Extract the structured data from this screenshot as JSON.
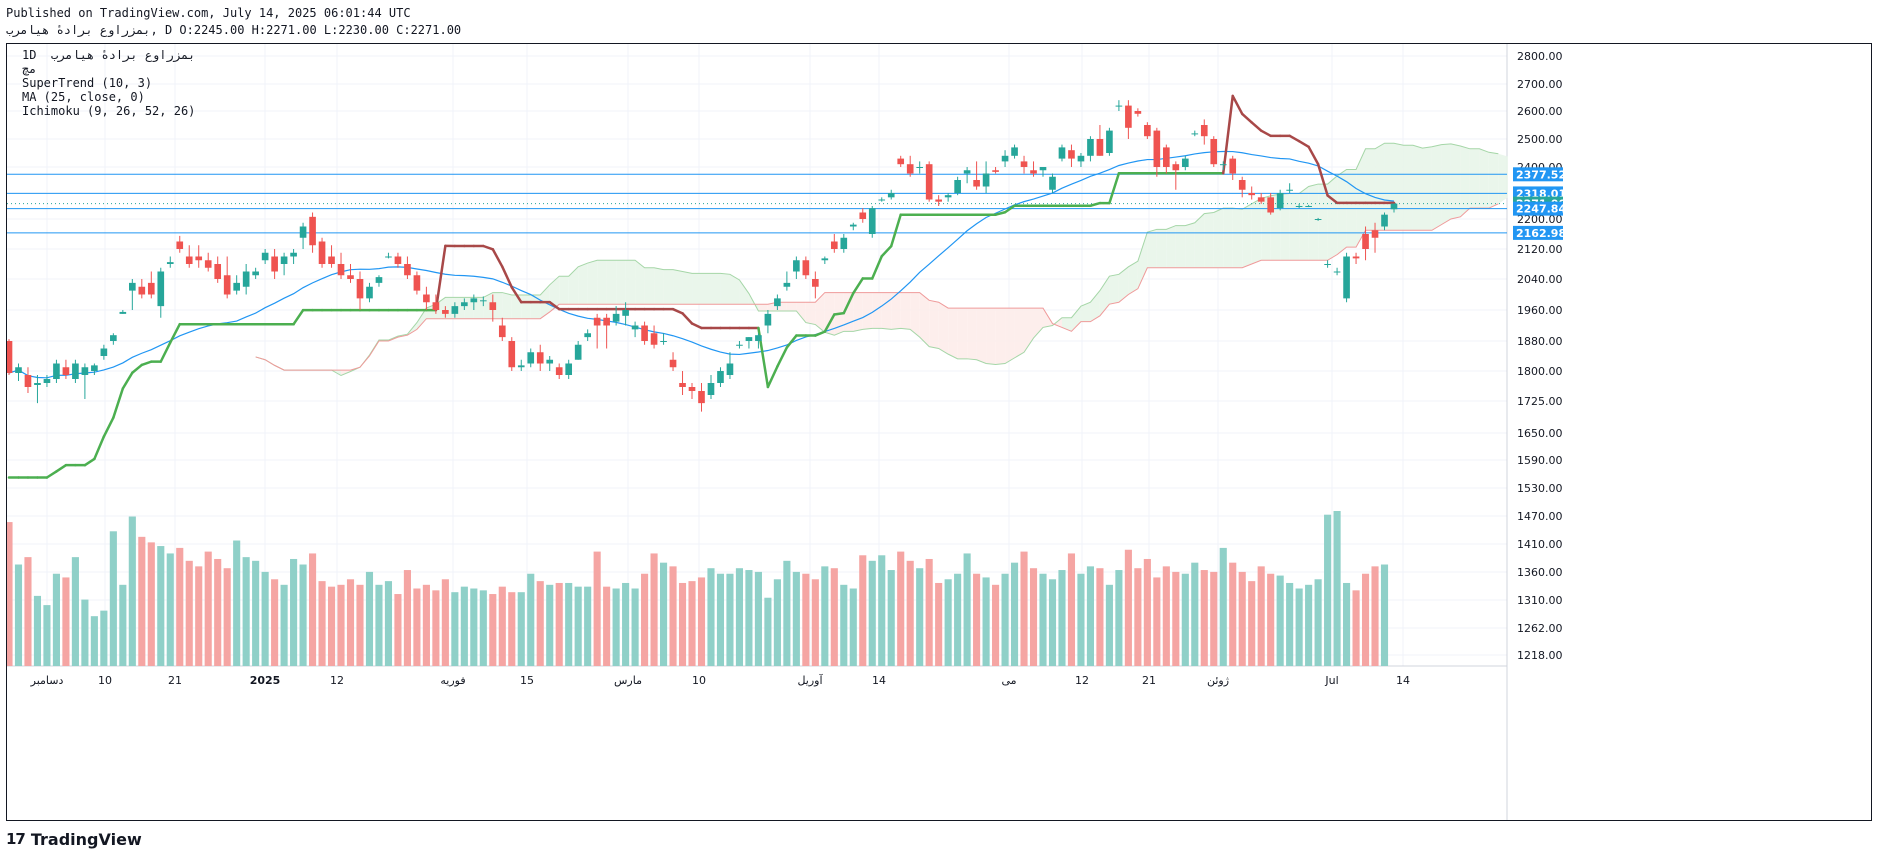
{
  "header": {
    "published": "Published on TradingView.com, July 14, 2025 06:01:44 UTC",
    "symbol_line": "بمزراوع برادهٔ هیامرب, D O:2245.00 H:2271.00 L:2230.00 C:2271.00"
  },
  "legend": {
    "line1": "1D  بمزراوع برادهٔ هیامرب",
    "line2": "مچ",
    "line3": "SuperTrend (10, 3)",
    "line4": "MA (25, close, 0)",
    "line5": "Ichimoku (9, 26, 52, 26)"
  },
  "footer": {
    "logo_mark": "17",
    "logo_word": "TradingView"
  },
  "colors": {
    "up": "#26a69a",
    "down": "#ef5350",
    "up_vol": "#8fd0c8",
    "down_vol": "#f5a5a3",
    "supertrend_up": "#4caf50",
    "supertrend_down": "#a84848",
    "ma": "#2196f3",
    "kumo_bull": "#e8f5e9",
    "kumo_bear": "#fdecea",
    "hline": "#2196f3"
  },
  "chart_data": {
    "type": "candlestick",
    "interval": "1D",
    "y_axis": {
      "side": "right",
      "ticks": [
        2800,
        2700,
        2600,
        2500,
        2400,
        2320,
        2200,
        2120,
        2040,
        1960,
        1880,
        1800,
        1725,
        1650,
        1590,
        1530,
        1470,
        1410,
        1360,
        1310,
        1262,
        1218
      ],
      "tick_labels": [
        "2800.00",
        "2700.00",
        "2600.00",
        "2500.00",
        "2400.00",
        "2320.00",
        "2200.00",
        "2120.00",
        "2040.00",
        "1960.00",
        "1880.00",
        "1800.00",
        "1725.00",
        "1650.00",
        "1590.00",
        "1530.00",
        "1470.00",
        "1410.00",
        "1360.00",
        "1310.00",
        "1262.00",
        "1218.00"
      ]
    },
    "x_axis": {
      "labels": [
        "دسامبر",
        "10",
        "21",
        "2025",
        "12",
        "فوریه",
        "15",
        "مارس",
        "10",
        "آوریل",
        "14",
        "می",
        "12",
        "21",
        "ژوئن",
        "Jul",
        "14"
      ]
    },
    "price_labels": [
      {
        "value": 2377.52,
        "text": "2377.52",
        "color": "#2196f3"
      },
      {
        "value": 2318.01,
        "text": "2318.01",
        "color": "#2196f3"
      },
      {
        "value": 2271.0,
        "text": "2271.00",
        "color": "#26a69a"
      },
      {
        "value": 2247.84,
        "text": "2247.84",
        "color": "#2196f3"
      },
      {
        "value": 2162.98,
        "text": "2162.98",
        "color": "#2196f3"
      }
    ],
    "horizontal_lines": [
      2377.52,
      2318.01,
      2247.84,
      2162.98
    ],
    "candles": [
      {
        "o": 1880,
        "h": 1885,
        "l": 1790,
        "c": 1795
      },
      {
        "o": 1795,
        "h": 1820,
        "l": 1775,
        "c": 1810
      },
      {
        "o": 1790,
        "h": 1810,
        "l": 1745,
        "c": 1760
      },
      {
        "o": 1765,
        "h": 1790,
        "l": 1720,
        "c": 1770
      },
      {
        "o": 1770,
        "h": 1790,
        "l": 1760,
        "c": 1780
      },
      {
        "o": 1780,
        "h": 1830,
        "l": 1770,
        "c": 1820
      },
      {
        "o": 1810,
        "h": 1830,
        "l": 1780,
        "c": 1790
      },
      {
        "o": 1780,
        "h": 1830,
        "l": 1770,
        "c": 1820
      },
      {
        "o": 1790,
        "h": 1820,
        "l": 1730,
        "c": 1810
      },
      {
        "o": 1800,
        "h": 1820,
        "l": 1790,
        "c": 1815
      },
      {
        "o": 1840,
        "h": 1870,
        "l": 1830,
        "c": 1860
      },
      {
        "o": 1880,
        "h": 1900,
        "l": 1870,
        "c": 1895
      },
      {
        "o": 1950,
        "h": 1960,
        "l": 1950,
        "c": 1955
      },
      {
        "o": 2010,
        "h": 2040,
        "l": 1960,
        "c": 2030
      },
      {
        "o": 2020,
        "h": 2040,
        "l": 1990,
        "c": 2000
      },
      {
        "o": 2030,
        "h": 2060,
        "l": 1990,
        "c": 2000
      },
      {
        "o": 1970,
        "h": 2070,
        "l": 1940,
        "c": 2060
      },
      {
        "o": 2080,
        "h": 2100,
        "l": 2070,
        "c": 2085
      },
      {
        "o": 2140,
        "h": 2155,
        "l": 2110,
        "c": 2120
      },
      {
        "o": 2100,
        "h": 2130,
        "l": 2070,
        "c": 2080
      },
      {
        "o": 2100,
        "h": 2130,
        "l": 2070,
        "c": 2090
      },
      {
        "o": 2090,
        "h": 2110,
        "l": 2060,
        "c": 2070
      },
      {
        "o": 2080,
        "h": 2100,
        "l": 2030,
        "c": 2040
      },
      {
        "o": 2050,
        "h": 2100,
        "l": 1990,
        "c": 2000
      },
      {
        "o": 2010,
        "h": 2050,
        "l": 2000,
        "c": 2030
      },
      {
        "o": 2020,
        "h": 2080,
        "l": 2000,
        "c": 2060
      },
      {
        "o": 2050,
        "h": 2070,
        "l": 2040,
        "c": 2060
      },
      {
        "o": 2090,
        "h": 2120,
        "l": 2080,
        "c": 2110
      },
      {
        "o": 2100,
        "h": 2120,
        "l": 2040,
        "c": 2060
      },
      {
        "o": 2080,
        "h": 2110,
        "l": 2050,
        "c": 2100
      },
      {
        "o": 2100,
        "h": 2120,
        "l": 2080,
        "c": 2110
      },
      {
        "o": 2150,
        "h": 2190,
        "l": 2120,
        "c": 2180
      },
      {
        "o": 2210,
        "h": 2230,
        "l": 2110,
        "c": 2130
      },
      {
        "o": 2140,
        "h": 2150,
        "l": 2070,
        "c": 2080
      },
      {
        "o": 2100,
        "h": 2130,
        "l": 2070,
        "c": 2080
      },
      {
        "o": 2080,
        "h": 2110,
        "l": 2040,
        "c": 2050
      },
      {
        "o": 2050,
        "h": 2080,
        "l": 2030,
        "c": 2040
      },
      {
        "o": 2040,
        "h": 2060,
        "l": 1960,
        "c": 1990
      },
      {
        "o": 1990,
        "h": 2030,
        "l": 1980,
        "c": 2020
      },
      {
        "o": 2030,
        "h": 2050,
        "l": 2020,
        "c": 2045
      },
      {
        "o": 2100,
        "h": 2110,
        "l": 2095,
        "c": 2100
      },
      {
        "o": 2100,
        "h": 2110,
        "l": 2070,
        "c": 2080
      },
      {
        "o": 2080,
        "h": 2100,
        "l": 2040,
        "c": 2050
      },
      {
        "o": 2050,
        "h": 2060,
        "l": 2000,
        "c": 2010
      },
      {
        "o": 2000,
        "h": 2020,
        "l": 1960,
        "c": 1980
      },
      {
        "o": 1980,
        "h": 2000,
        "l": 1950,
        "c": 1960
      },
      {
        "o": 1960,
        "h": 1970,
        "l": 1940,
        "c": 1950
      },
      {
        "o": 1950,
        "h": 1980,
        "l": 1940,
        "c": 1970
      },
      {
        "o": 1970,
        "h": 1990,
        "l": 1960,
        "c": 1980
      },
      {
        "o": 1980,
        "h": 2000,
        "l": 1960,
        "c": 1990
      },
      {
        "o": 1985,
        "h": 1995,
        "l": 1970,
        "c": 1985
      },
      {
        "o": 1980,
        "h": 2000,
        "l": 1930,
        "c": 1960
      },
      {
        "o": 1920,
        "h": 1940,
        "l": 1880,
        "c": 1890
      },
      {
        "o": 1880,
        "h": 1890,
        "l": 1800,
        "c": 1810
      },
      {
        "o": 1810,
        "h": 1830,
        "l": 1800,
        "c": 1815
      },
      {
        "o": 1820,
        "h": 1860,
        "l": 1810,
        "c": 1850
      },
      {
        "o": 1850,
        "h": 1870,
        "l": 1800,
        "c": 1820
      },
      {
        "o": 1820,
        "h": 1840,
        "l": 1800,
        "c": 1830
      },
      {
        "o": 1810,
        "h": 1820,
        "l": 1780,
        "c": 1790
      },
      {
        "o": 1790,
        "h": 1830,
        "l": 1780,
        "c": 1820
      },
      {
        "o": 1830,
        "h": 1880,
        "l": 1830,
        "c": 1870
      },
      {
        "o": 1890,
        "h": 1910,
        "l": 1880,
        "c": 1900
      },
      {
        "o": 1940,
        "h": 1950,
        "l": 1860,
        "c": 1920
      },
      {
        "o": 1940,
        "h": 1950,
        "l": 1860,
        "c": 1920
      },
      {
        "o": 1930,
        "h": 1970,
        "l": 1920,
        "c": 1950
      },
      {
        "o": 1945,
        "h": 1980,
        "l": 1920,
        "c": 1960
      },
      {
        "o": 1910,
        "h": 1930,
        "l": 1890,
        "c": 1920
      },
      {
        "o": 1920,
        "h": 1930,
        "l": 1870,
        "c": 1880
      },
      {
        "o": 1900,
        "h": 1920,
        "l": 1860,
        "c": 1870
      },
      {
        "o": 1880,
        "h": 1900,
        "l": 1870,
        "c": 1880
      },
      {
        "o": 1830,
        "h": 1850,
        "l": 1800,
        "c": 1810
      },
      {
        "o": 1770,
        "h": 1800,
        "l": 1740,
        "c": 1760
      },
      {
        "o": 1760,
        "h": 1770,
        "l": 1730,
        "c": 1750
      },
      {
        "o": 1750,
        "h": 1770,
        "l": 1700,
        "c": 1720
      },
      {
        "o": 1740,
        "h": 1790,
        "l": 1730,
        "c": 1770
      },
      {
        "o": 1770,
        "h": 1810,
        "l": 1760,
        "c": 1800
      },
      {
        "o": 1790,
        "h": 1850,
        "l": 1780,
        "c": 1820
      },
      {
        "o": 1870,
        "h": 1880,
        "l": 1860,
        "c": 1870
      },
      {
        "o": 1880,
        "h": 1890,
        "l": 1860,
        "c": 1890
      },
      {
        "o": 1880,
        "h": 1900,
        "l": 1860,
        "c": 1895
      },
      {
        "o": 1920,
        "h": 1960,
        "l": 1900,
        "c": 1950
      },
      {
        "o": 1970,
        "h": 2000,
        "l": 1960,
        "c": 1990
      },
      {
        "o": 2020,
        "h": 2060,
        "l": 2010,
        "c": 2030
      },
      {
        "o": 2060,
        "h": 2100,
        "l": 2040,
        "c": 2090
      },
      {
        "o": 2090,
        "h": 2100,
        "l": 2040,
        "c": 2050
      },
      {
        "o": 2040,
        "h": 2060,
        "l": 1990,
        "c": 2020
      },
      {
        "o": 2090,
        "h": 2100,
        "l": 2080,
        "c": 2095
      },
      {
        "o": 2140,
        "h": 2160,
        "l": 2110,
        "c": 2120
      },
      {
        "o": 2120,
        "h": 2160,
        "l": 2110,
        "c": 2150
      },
      {
        "o": 2180,
        "h": 2190,
        "l": 2170,
        "c": 2185
      },
      {
        "o": 2230,
        "h": 2250,
        "l": 2190,
        "c": 2200
      },
      {
        "o": 2160,
        "h": 2260,
        "l": 2150,
        "c": 2250
      },
      {
        "o": 2290,
        "h": 2300,
        "l": 2280,
        "c": 2290
      },
      {
        "o": 2300,
        "h": 2330,
        "l": 2290,
        "c": 2320
      },
      {
        "o": 2430,
        "h": 2440,
        "l": 2400,
        "c": 2410
      },
      {
        "o": 2410,
        "h": 2440,
        "l": 2370,
        "c": 2380
      },
      {
        "o": 2400,
        "h": 2420,
        "l": 2380,
        "c": 2400
      },
      {
        "o": 2410,
        "h": 2420,
        "l": 2280,
        "c": 2290
      },
      {
        "o": 2290,
        "h": 2310,
        "l": 2260,
        "c": 2280
      },
      {
        "o": 2300,
        "h": 2320,
        "l": 2280,
        "c": 2310
      },
      {
        "o": 2320,
        "h": 2370,
        "l": 2310,
        "c": 2360
      },
      {
        "o": 2380,
        "h": 2400,
        "l": 2350,
        "c": 2390
      },
      {
        "o": 2360,
        "h": 2420,
        "l": 2330,
        "c": 2340
      },
      {
        "o": 2340,
        "h": 2420,
        "l": 2320,
        "c": 2380
      },
      {
        "o": 2390,
        "h": 2400,
        "l": 2380,
        "c": 2385
      },
      {
        "o": 2420,
        "h": 2460,
        "l": 2400,
        "c": 2440
      },
      {
        "o": 2440,
        "h": 2480,
        "l": 2430,
        "c": 2470
      },
      {
        "o": 2420,
        "h": 2440,
        "l": 2380,
        "c": 2400
      },
      {
        "o": 2390,
        "h": 2420,
        "l": 2370,
        "c": 2380
      },
      {
        "o": 2390,
        "h": 2400,
        "l": 2370,
        "c": 2400
      },
      {
        "o": 2330,
        "h": 2380,
        "l": 2320,
        "c": 2370
      },
      {
        "o": 2430,
        "h": 2480,
        "l": 2420,
        "c": 2470
      },
      {
        "o": 2460,
        "h": 2480,
        "l": 2400,
        "c": 2430
      },
      {
        "o": 2420,
        "h": 2450,
        "l": 2400,
        "c": 2440
      },
      {
        "o": 2440,
        "h": 2510,
        "l": 2420,
        "c": 2500
      },
      {
        "o": 2500,
        "h": 2550,
        "l": 2440,
        "c": 2440
      },
      {
        "o": 2450,
        "h": 2540,
        "l": 2440,
        "c": 2530
      },
      {
        "o": 2620,
        "h": 2640,
        "l": 2600,
        "c": 2620
      },
      {
        "o": 2620,
        "h": 2640,
        "l": 2500,
        "c": 2540
      },
      {
        "o": 2600,
        "h": 2610,
        "l": 2580,
        "c": 2590
      },
      {
        "o": 2550,
        "h": 2560,
        "l": 2500,
        "c": 2510
      },
      {
        "o": 2530,
        "h": 2540,
        "l": 2370,
        "c": 2400
      },
      {
        "o": 2470,
        "h": 2480,
        "l": 2380,
        "c": 2400
      },
      {
        "o": 2410,
        "h": 2420,
        "l": 2330,
        "c": 2390
      },
      {
        "o": 2400,
        "h": 2440,
        "l": 2390,
        "c": 2430
      },
      {
        "o": 2520,
        "h": 2530,
        "l": 2510,
        "c": 2520
      },
      {
        "o": 2550,
        "h": 2570,
        "l": 2480,
        "c": 2510
      },
      {
        "o": 2500,
        "h": 2510,
        "l": 2400,
        "c": 2410
      },
      {
        "o": 2410,
        "h": 2420,
        "l": 2390,
        "c": 2410
      },
      {
        "o": 2430,
        "h": 2440,
        "l": 2360,
        "c": 2380
      },
      {
        "o": 2360,
        "h": 2370,
        "l": 2300,
        "c": 2330
      },
      {
        "o": 2320,
        "h": 2340,
        "l": 2290,
        "c": 2310
      },
      {
        "o": 2300,
        "h": 2320,
        "l": 2270,
        "c": 2280
      },
      {
        "o": 2300,
        "h": 2320,
        "l": 2220,
        "c": 2230
      },
      {
        "o": 2250,
        "h": 2330,
        "l": 2240,
        "c": 2320
      },
      {
        "o": 2330,
        "h": 2350,
        "l": 2320,
        "c": 2330
      },
      {
        "o": 2260,
        "h": 2270,
        "l": 2250,
        "c": 2260
      },
      {
        "o": 2260,
        "h": 2265,
        "l": 2255,
        "c": 2260
      },
      {
        "o": 2200,
        "h": 2205,
        "l": 2195,
        "c": 2200
      },
      {
        "o": 2080,
        "h": 2090,
        "l": 2070,
        "c": 2080
      },
      {
        "o": 2060,
        "h": 2070,
        "l": 2050,
        "c": 2060
      },
      {
        "o": 1990,
        "h": 2110,
        "l": 1980,
        "c": 2100
      },
      {
        "o": 2100,
        "h": 2110,
        "l": 2080,
        "c": 2095
      },
      {
        "o": 2160,
        "h": 2180,
        "l": 2090,
        "c": 2120
      },
      {
        "o": 2170,
        "h": 2190,
        "l": 2110,
        "c": 2150
      },
      {
        "o": 2180,
        "h": 2230,
        "l": 2170,
        "c": 2220
      },
      {
        "o": 2245,
        "h": 2271,
        "l": 2230,
        "c": 2271
      }
    ],
    "volume": [
      3900,
      2750,
      2950,
      1900,
      1650,
      2500,
      2400,
      2950,
      1800,
      1350,
      1500,
      3650,
      2200,
      4050,
      3500,
      3350,
      3250,
      3050,
      3200,
      2850,
      2700,
      3100,
      2900,
      2650,
      3400,
      2950,
      2850,
      2550,
      2350,
      2200,
      2900,
      2750,
      3050,
      2300,
      2150,
      2200,
      2350,
      2200,
      2550,
      2200,
      2300,
      1950,
      2600,
      2100,
      2200,
      2050,
      2350,
      2000,
      2150,
      2100,
      2050,
      1950,
      2150,
      2000,
      2000,
      2500,
      2300,
      2200,
      2250,
      2250,
      2150,
      2150,
      3100,
      2150,
      2100,
      2250,
      2100,
      2500,
      3050,
      2800,
      2700,
      2250,
      2300,
      2400,
      2650,
      2500,
      2500,
      2650,
      2600,
      2550,
      1850,
      2350,
      2850,
      2550,
      2500,
      2350,
      2700,
      2650,
      2200,
      2100,
      3000,
      2850,
      3000,
      2600,
      3100,
      2850,
      2650,
      2900,
      2250,
      2350,
      2500,
      3050,
      2500,
      2400,
      2200,
      2500,
      2800,
      3100,
      2650,
      2500,
      2350,
      2600,
      3050,
      2500,
      2700,
      2650,
      2200,
      2600,
      3150,
      2650,
      2900,
      2400,
      2700,
      2550,
      2500,
      2800,
      2600,
      2550,
      3200,
      2800,
      2550,
      2300,
      2700,
      2500,
      2450,
      2250,
      2100,
      2200,
      2350,
      4100,
      4200,
      2250,
      2050,
      2500,
      2700,
      2750
    ]
  }
}
